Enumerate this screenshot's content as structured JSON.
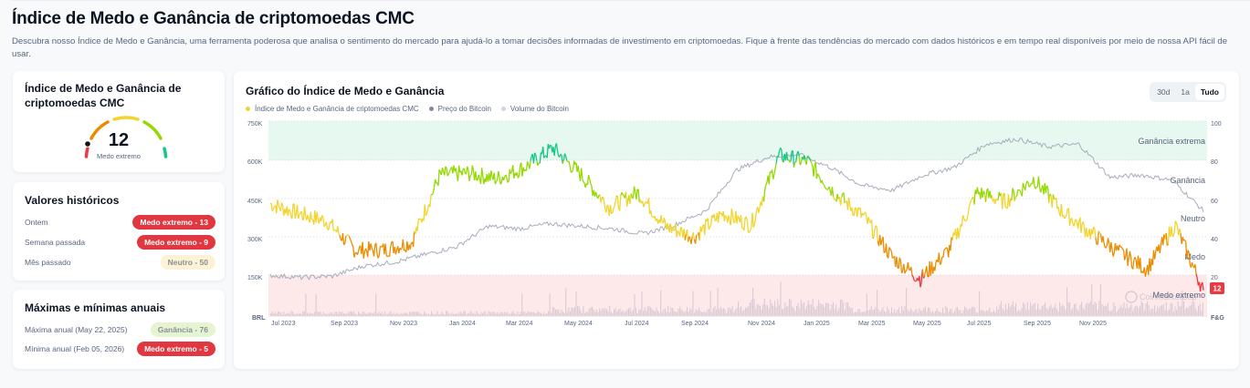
{
  "header": {
    "title": "Índice de Medo e Ganância de criptomoedas CMC",
    "description": "Descubra nosso Índice de Medo e Ganância, uma ferramenta poderosa que analisa o sentimento do mercado para ajudá-lo a tomar decisões informadas de investimento em criptomoedas. Fique à frente das tendências do mercado com dados históricos e em tempo real disponíveis por meio de nossa API fácil de usar."
  },
  "gauge": {
    "title": "Índice de Medo e Ganância de criptomoedas CMC",
    "value": "12",
    "label": "Medo extremo",
    "segment_colors": [
      "#ea3943",
      "#ea8c00",
      "#f3d42f",
      "#93d900",
      "#16c784"
    ]
  },
  "historical": {
    "title": "Valores históricos",
    "rows": [
      {
        "label": "Ontem",
        "badge": "Medo extremo - 13",
        "tone": "red"
      },
      {
        "label": "Semana passada",
        "badge": "Medo extremo - 9",
        "tone": "red"
      },
      {
        "label": "Mês passado",
        "badge": "Neutro - 50",
        "tone": "neutral"
      }
    ]
  },
  "annual": {
    "title": "Máximas e mínimas anuais",
    "rows": [
      {
        "label": "Máxima anual (May 22, 2025)",
        "badge": "Ganância - 76",
        "tone": "green"
      },
      {
        "label": "Mínima anual (Feb 05, 2026)",
        "badge": "Medo extremo - 5",
        "tone": "red"
      }
    ]
  },
  "chart": {
    "title": "Gráfico do Índice de Medo e Ganância",
    "legend": [
      {
        "label": "Índice de Medo e Ganância de criptomoedas CMC",
        "color": "#f3d42f"
      },
      {
        "label": "Preço do Bitcoin",
        "color": "#808a9d"
      },
      {
        "label": "Volume do Bitcoin",
        "color": "#cfd6e4"
      }
    ],
    "range_tabs": [
      {
        "label": "30d",
        "active": false
      },
      {
        "label": "1a",
        "active": false
      },
      {
        "label": "Tudo",
        "active": true
      }
    ],
    "current_value_tag": "12",
    "watermark": "CoinMarketCap"
  },
  "chart_data": {
    "type": "line",
    "title": "Gráfico do Índice de Medo e Ganância",
    "xlabel": "",
    "ylabel_left": "BRL",
    "ylabel_right": "F&G",
    "x_ticks": [
      "Jul 2023",
      "Sep 2023",
      "Nov 2023",
      "Jan 2024",
      "Mar 2024",
      "May 2024",
      "Jul 2024",
      "Sep 2024",
      "Nov 2024",
      "Jan 2025",
      "Mar 2025",
      "May 2025",
      "Jul 2025",
      "Sep 2025",
      "Nov 2025"
    ],
    "y_left_ticks": [
      "BRL",
      "150K",
      "300K",
      "450K",
      "600K",
      "750K"
    ],
    "y_right_ticks": [
      "F&G",
      "20",
      "40",
      "60",
      "80",
      "100"
    ],
    "ylim_left": [
      0,
      750000
    ],
    "ylim_right": [
      0,
      100
    ],
    "zones": [
      {
        "label": "Ganância extrema",
        "from": 80,
        "to": 100,
        "color": "#e6f8ef"
      },
      {
        "label": "Ganância",
        "from": 60,
        "to": 80
      },
      {
        "label": "Neutro",
        "from": 40,
        "to": 60
      },
      {
        "label": "Medo",
        "from": 20,
        "to": 40
      },
      {
        "label": "Medo extremo",
        "from": 0,
        "to": 20,
        "color": "#fde8ea"
      }
    ],
    "grid": true,
    "legend_position": "top-left",
    "series": [
      {
        "name": "Índice de Medo e Ganância de criptomoedas CMC",
        "axis": "right",
        "x": [
          "Jun 2023",
          "Jul 2023",
          "Aug 2023",
          "Sep 2023",
          "Oct 2023",
          "Oct 2023b",
          "Nov 2023",
          "Dec 2023",
          "Jan 2024",
          "Feb 2024",
          "Mar 2024",
          "Apr 2024",
          "May 2024",
          "Jun 2024",
          "Jul 2024",
          "Aug 2024",
          "Sep 2024",
          "Oct 2024",
          "Nov 2024",
          "Dec 2024",
          "Jan 2025",
          "Feb 2025",
          "Mar 2025",
          "Apr 2025",
          "May 2025",
          "Jun 2025",
          "Jul 2025",
          "Aug 2025",
          "Sep 2025",
          "Oct 2025",
          "Nov 2025",
          "Dec 2025",
          "Jan 2026",
          "Feb 2026"
        ],
        "values": [
          57,
          52,
          48,
          33,
          33,
          37,
          72,
          73,
          70,
          76,
          86,
          72,
          55,
          63,
          45,
          40,
          52,
          46,
          82,
          79,
          62,
          50,
          29,
          18,
          33,
          63,
          58,
          70,
          53,
          42,
          32,
          23,
          46,
          12
        ]
      },
      {
        "name": "Preço do Bitcoin",
        "axis": "left",
        "unit": "BRL",
        "x": [
          "Jun 2023",
          "Aug 2023",
          "Oct 2023",
          "Nov 2023",
          "Dec 2023",
          "Jan 2024",
          "Feb 2024",
          "Mar 2024",
          "Apr 2024",
          "May 2024",
          "Jun 2024",
          "Jul 2024",
          "Aug 2024",
          "Sep 2024",
          "Oct 2024",
          "Nov 2024",
          "Dec 2024",
          "Jan 2025",
          "Feb 2025",
          "Mar 2025",
          "Apr 2025",
          "May 2025",
          "Jun 2025",
          "Jul 2025",
          "Aug 2025",
          "Sep 2025",
          "Oct 2025",
          "Nov 2025",
          "Dec 2025",
          "Jan 2026",
          "Feb 2026"
        ],
        "values": [
          148000,
          140000,
          145000,
          185000,
          200000,
          230000,
          260000,
          340000,
          330000,
          350000,
          340000,
          330000,
          310000,
          345000,
          400000,
          560000,
          610000,
          620000,
          570000,
          500000,
          480000,
          540000,
          570000,
          660000,
          680000,
          650000,
          660000,
          530000,
          540000,
          520000,
          400000
        ]
      },
      {
        "name": "Volume do Bitcoin",
        "axis": "hidden",
        "description": "Bar series along bottom, low in 2023, spikes around Nov 2024 and Mar 2025"
      }
    ]
  }
}
